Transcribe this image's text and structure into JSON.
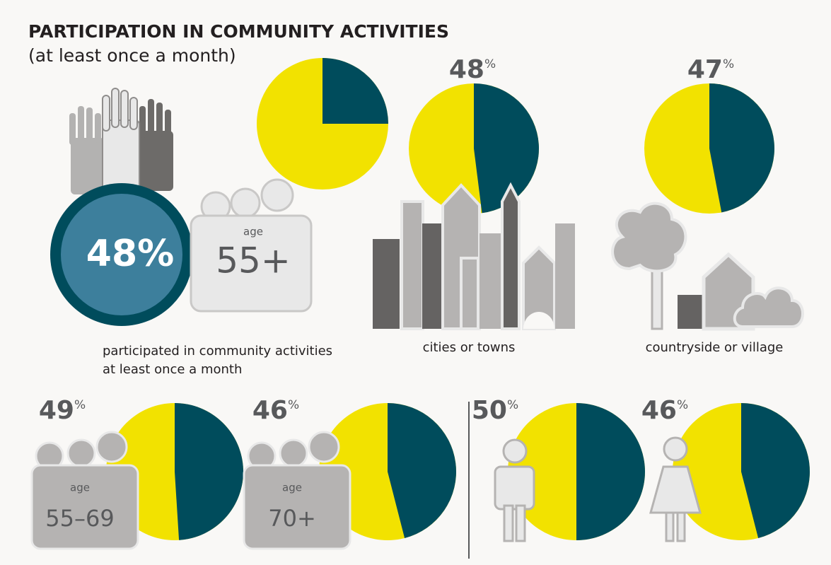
{
  "title": "PARTICIPATION IN COMMUNITY ACTIVITIES",
  "subtitle": "(at least once a month)",
  "headline": "48%",
  "headline_group_prefix": "age",
  "headline_group": "55+",
  "headline_caption": [
    "participated in community activities",
    "at least once a month"
  ],
  "chart_data": [
    {
      "type": "pie",
      "values": [
        25
      ],
      "colors": [
        "#004c5c",
        "#f2e200"
      ]
    },
    {
      "type": "pie",
      "values": [
        48
      ],
      "unit": "%",
      "caption": "cities or towns",
      "colors": [
        "#004c5c",
        "#f2e200"
      ]
    },
    {
      "type": "pie",
      "values": [
        47
      ],
      "unit": "%",
      "caption": "countryside or village",
      "colors": [
        "#004c5c",
        "#f2e200"
      ]
    },
    {
      "type": "pie",
      "values": [
        49
      ],
      "unit": "%",
      "group_prefix": "age",
      "group": "55–69",
      "colors": [
        "#004c5c",
        "#f2e200"
      ]
    },
    {
      "type": "pie",
      "values": [
        46
      ],
      "unit": "%",
      "group_prefix": "age",
      "group": "70+",
      "colors": [
        "#004c5c",
        "#f2e200"
      ]
    },
    {
      "type": "pie",
      "values": [
        50
      ],
      "unit": "%",
      "colors": [
        "#004c5c",
        "#f2e200"
      ]
    },
    {
      "type": "pie",
      "values": [
        46
      ],
      "unit": "%",
      "colors": [
        "#004c5c",
        "#f2e200"
      ]
    }
  ]
}
